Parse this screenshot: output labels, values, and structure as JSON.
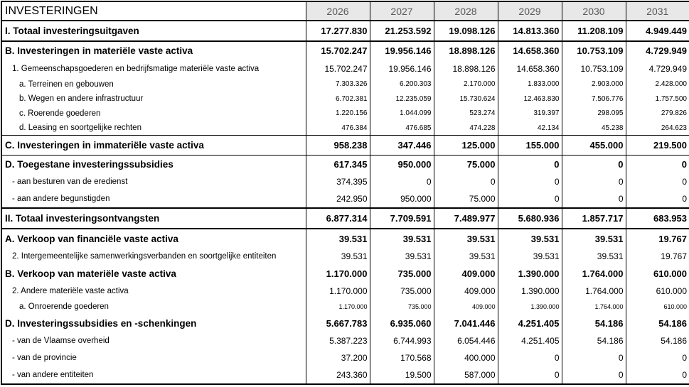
{
  "header": {
    "title": "INVESTERINGEN",
    "years": [
      "2026",
      "2027",
      "2028",
      "2029",
      "2030",
      "2031"
    ]
  },
  "colors": {
    "header_background": "#e8e8e8",
    "header_text": "#595959",
    "border": "#000000",
    "text": "#000000",
    "background": "#ffffff"
  },
  "rows": [
    {
      "label": "I. Totaal investeringsuitgaven",
      "indent": 0,
      "bold": true,
      "value_size": "bold",
      "border_bottom": "thick",
      "values": [
        "17.277.830",
        "21.253.592",
        "19.098.126",
        "14.813.360",
        "11.208.109",
        "4.949.449"
      ]
    },
    {
      "label": "B. Investeringen in materiële vaste activa",
      "indent": 0,
      "bold": true,
      "value_size": "bold",
      "values": [
        "15.702.247",
        "19.956.146",
        "18.898.126",
        "14.658.360",
        "10.753.109",
        "4.729.949"
      ]
    },
    {
      "label": "1. Gemeenschapsgoederen en bedrijfsmatige materiële vaste activa",
      "indent": 1,
      "bold": false,
      "value_size": "normal",
      "values": [
        "15.702.247",
        "19.956.146",
        "18.898.126",
        "14.658.360",
        "10.753.109",
        "4.729.949"
      ]
    },
    {
      "label": "a. Terreinen en gebouwen",
      "indent": 2,
      "bold": false,
      "value_size": "small",
      "values": [
        "7.303.326",
        "6.200.303",
        "2.170.000",
        "1.833.000",
        "2.903.000",
        "2.428.000"
      ]
    },
    {
      "label": "b. Wegen en andere infrastructuur",
      "indent": 2,
      "bold": false,
      "value_size": "small",
      "values": [
        "6.702.381",
        "12.235.059",
        "15.730.624",
        "12.463.830",
        "7.506.776",
        "1.757.500"
      ]
    },
    {
      "label": "c. Roerende goederen",
      "indent": 2,
      "bold": false,
      "value_size": "small",
      "values": [
        "1.220.156",
        "1.044.099",
        "523.274",
        "319.397",
        "298.095",
        "279.826"
      ]
    },
    {
      "label": "d. Leasing en soortgelijke rechten",
      "indent": 2,
      "bold": false,
      "value_size": "small",
      "values": [
        "476.384",
        "476.685",
        "474.228",
        "42.134",
        "45.238",
        "264.623"
      ]
    },
    {
      "label": "C. Investeringen in immateriële vaste activa",
      "indent": 0,
      "bold": true,
      "value_size": "bold",
      "border_top": "thin",
      "values": [
        "958.238",
        "347.446",
        "125.000",
        "155.000",
        "455.000",
        "219.500"
      ]
    },
    {
      "label": "D. Toegestane investeringssubsidies",
      "indent": 0,
      "bold": true,
      "value_size": "bold",
      "border_top": "thin",
      "values": [
        "617.345",
        "950.000",
        "75.000",
        "0",
        "0",
        "0"
      ]
    },
    {
      "label": "- aan besturen van de eredienst",
      "indent": 1,
      "bold": false,
      "value_size": "normal",
      "values": [
        "374.395",
        "0",
        "0",
        "0",
        "0",
        "0"
      ]
    },
    {
      "label": "- aan andere begunstigden",
      "indent": 1,
      "bold": false,
      "value_size": "normal",
      "values": [
        "242.950",
        "950.000",
        "75.000",
        "0",
        "0",
        "0"
      ]
    },
    {
      "label": "II. Totaal investeringsontvangsten",
      "indent": 0,
      "bold": true,
      "value_size": "bold",
      "border_top": "thick",
      "border_bottom": "thick",
      "values": [
        "6.877.314",
        "7.709.591",
        "7.489.977",
        "5.680.936",
        "1.857.717",
        "683.953"
      ]
    },
    {
      "label": "A. Verkoop van financiële vaste activa",
      "indent": 0,
      "bold": true,
      "value_size": "bold",
      "values": [
        "39.531",
        "39.531",
        "39.531",
        "39.531",
        "39.531",
        "19.767"
      ]
    },
    {
      "label": "2. Intergemeentelijke samenwerkingsverbanden en soortgelijke entiteiten",
      "indent": 1,
      "bold": false,
      "value_size": "normal",
      "values": [
        "39.531",
        "39.531",
        "39.531",
        "39.531",
        "39.531",
        "19.767"
      ]
    },
    {
      "label": "B. Verkoop van materiële vaste activa",
      "indent": 0,
      "bold": true,
      "value_size": "bold",
      "values": [
        "1.170.000",
        "735.000",
        "409.000",
        "1.390.000",
        "1.764.000",
        "610.000"
      ]
    },
    {
      "label": "2. Andere materiële vaste activa",
      "indent": 1,
      "bold": false,
      "value_size": "normal",
      "values": [
        "1.170.000",
        "735.000",
        "409.000",
        "1.390.000",
        "1.764.000",
        "610.000"
      ]
    },
    {
      "label": "a. Onroerende goederen",
      "indent": 2,
      "bold": false,
      "value_size": "tiny",
      "values": [
        "1.170.000",
        "735.000",
        "409.000",
        "1.390.000",
        "1.764.000",
        "610.000"
      ]
    },
    {
      "label": "D. Investeringssubsidies en -schenkingen",
      "indent": 0,
      "bold": true,
      "value_size": "bold",
      "values": [
        "5.667.783",
        "6.935.060",
        "7.041.446",
        "4.251.405",
        "54.186",
        "54.186"
      ]
    },
    {
      "label": "- van de Vlaamse overheid",
      "indent": 1,
      "bold": false,
      "value_size": "normal",
      "values": [
        "5.387.223",
        "6.744.993",
        "6.054.446",
        "4.251.405",
        "54.186",
        "54.186"
      ]
    },
    {
      "label": "- van de provincie",
      "indent": 1,
      "bold": false,
      "value_size": "normal",
      "values": [
        "37.200",
        "170.568",
        "400.000",
        "0",
        "0",
        "0"
      ]
    },
    {
      "label": "- van andere entiteiten",
      "indent": 1,
      "bold": false,
      "value_size": "normal",
      "values": [
        "243.360",
        "19.500",
        "587.000",
        "0",
        "0",
        "0"
      ]
    }
  ]
}
